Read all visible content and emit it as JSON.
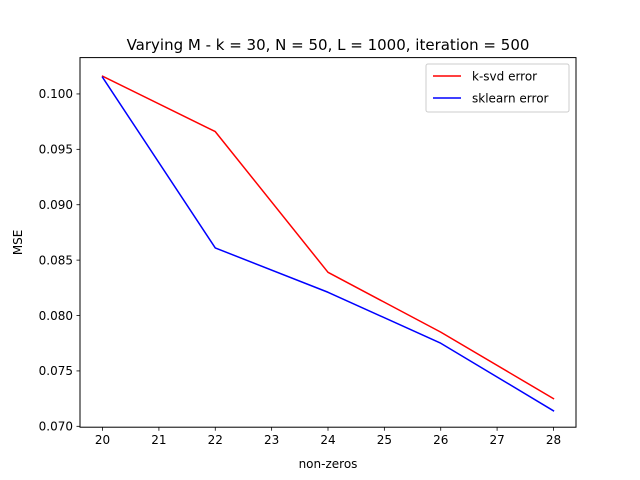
{
  "chart_data": {
    "type": "line",
    "title": "Varying M - k = 30, N = 50, L = 1000, iteration = 500",
    "xlabel": "non-zeros",
    "ylabel": "MSE",
    "x": [
      20,
      22,
      24,
      26,
      28
    ],
    "x_ticks": [
      20,
      21,
      22,
      23,
      24,
      25,
      26,
      27,
      28
    ],
    "y_ticks": [
      0.07,
      0.075,
      0.08,
      0.085,
      0.09,
      0.095,
      0.1
    ],
    "y_tick_labels": [
      "0.070",
      "0.075",
      "0.080",
      "0.085",
      "0.090",
      "0.095",
      "0.100"
    ],
    "xlim": [
      19.6,
      28.4
    ],
    "ylim": [
      0.06992,
      0.10328
    ],
    "grid": false,
    "legend_position": "top-right",
    "series": [
      {
        "name": "k-svd error",
        "color": "#ff0000",
        "values": [
          0.1016,
          0.0966,
          0.0839,
          0.0785,
          0.0725
        ]
      },
      {
        "name": "sklearn error",
        "color": "#0000ff",
        "values": [
          0.1015,
          0.0861,
          0.0821,
          0.0775,
          0.0714
        ]
      }
    ]
  }
}
